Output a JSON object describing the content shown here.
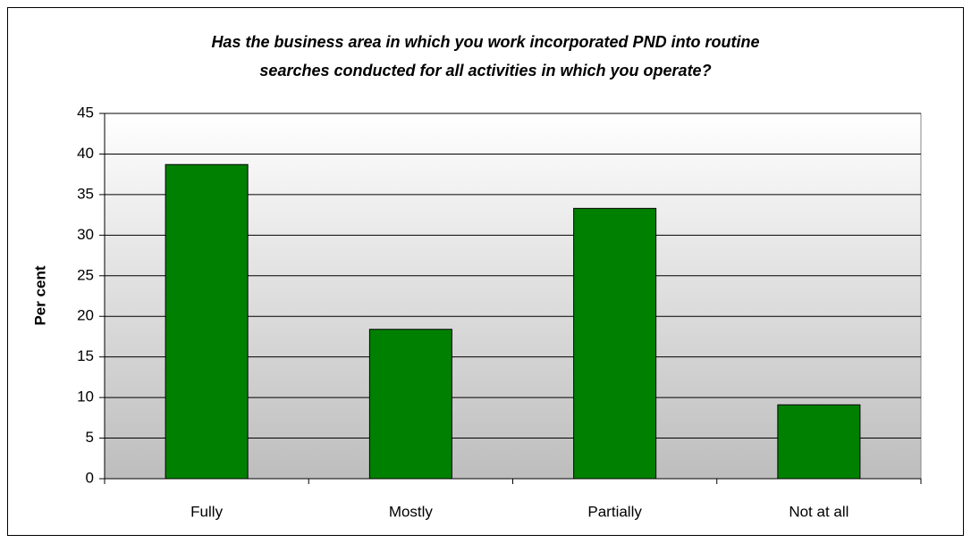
{
  "chart_data": {
    "type": "bar",
    "title": [
      "Has the business area in which you work incorporated PND into routine",
      "searches conducted for all activities in which you operate?"
    ],
    "y_label": "Per cent",
    "categories": [
      "Fully",
      "Mostly",
      "Partially",
      "Not at all"
    ],
    "values": [
      38.7,
      18.4,
      33.3,
      9.1
    ],
    "color": "#008000",
    "ylim": [
      0,
      45
    ],
    "yticks": [
      0,
      5,
      10,
      15,
      20,
      25,
      30,
      35,
      40,
      45
    ],
    "grid": true
  }
}
